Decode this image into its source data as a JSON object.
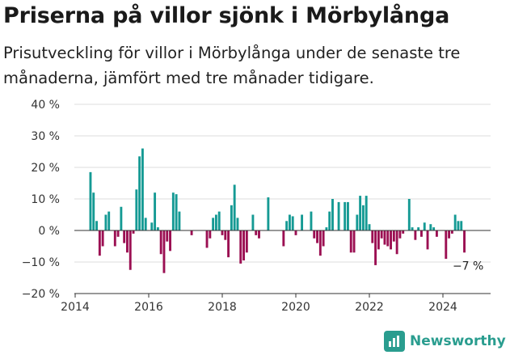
{
  "title": "Priserna på villor sjönk i Mörbylånga",
  "subtitle": "Prisutveckling för villor i Mörbylånga under de senaste tre månaderna, jämfört med tre månader tidigare.",
  "logo": {
    "text": "Newsworthy",
    "icon": "bar-chart-badge-icon"
  },
  "colors": {
    "positive": "#159a94",
    "negative": "#9b0f52",
    "grid": "#dddddd",
    "zero": "#333333"
  },
  "chart_data": {
    "type": "bar",
    "title": "Priserna på villor sjönk i Mörbylånga",
    "xlabel": "",
    "ylabel": "",
    "x_range": [
      "2014-01",
      "2025-04"
    ],
    "x_ticks": [
      "2014",
      "2016",
      "2018",
      "2020",
      "2022",
      "2024"
    ],
    "ylim": [
      -20,
      40
    ],
    "y_ticks": [
      "−20 %",
      "−10 %",
      "0 %",
      "10 %",
      "20 %",
      "30 %",
      "40 %"
    ],
    "grid": true,
    "annotation": {
      "text": "−7 %",
      "x": "2024-09",
      "y": -7
    },
    "series": [
      {
        "points": [
          [
            "2014-06",
            18.5
          ],
          [
            "2014-07",
            12
          ],
          [
            "2014-08",
            3
          ],
          [
            "2014-09",
            -8
          ],
          [
            "2014-10",
            -5
          ],
          [
            "2014-11",
            5
          ],
          [
            "2014-12",
            6
          ],
          [
            "2015-02",
            -5
          ],
          [
            "2015-03",
            -2
          ],
          [
            "2015-04",
            7.5
          ],
          [
            "2015-05",
            -4
          ],
          [
            "2015-06",
            -7
          ],
          [
            "2015-07",
            -12.5
          ],
          [
            "2015-08",
            -1
          ],
          [
            "2015-09",
            13
          ],
          [
            "2015-10",
            23.5
          ],
          [
            "2015-11",
            26
          ],
          [
            "2015-12",
            4
          ],
          [
            "2016-02",
            2.5
          ],
          [
            "2016-03",
            12
          ],
          [
            "2016-04",
            1
          ],
          [
            "2016-05",
            -7.5
          ],
          [
            "2016-06",
            -13.5
          ],
          [
            "2016-07",
            -3.5
          ],
          [
            "2016-08",
            -6.5
          ],
          [
            "2016-09",
            12
          ],
          [
            "2016-10",
            11.5
          ],
          [
            "2016-11",
            6
          ],
          [
            "2017-03",
            -1.5
          ],
          [
            "2017-08",
            -5.5
          ],
          [
            "2017-09",
            -2.5
          ],
          [
            "2017-10",
            4
          ],
          [
            "2017-11",
            5
          ],
          [
            "2017-12",
            6
          ],
          [
            "2018-01",
            -1.5
          ],
          [
            "2018-02",
            -3
          ],
          [
            "2018-03",
            -8.5
          ],
          [
            "2018-04",
            8
          ],
          [
            "2018-05",
            14.5
          ],
          [
            "2018-06",
            4
          ],
          [
            "2018-07",
            -10.5
          ],
          [
            "2018-08",
            -9.5
          ],
          [
            "2018-09",
            -7
          ],
          [
            "2018-11",
            5
          ],
          [
            "2018-12",
            -1.5
          ],
          [
            "2019-01",
            -2.5
          ],
          [
            "2019-04",
            10.5
          ],
          [
            "2019-09",
            -5
          ],
          [
            "2019-10",
            3
          ],
          [
            "2019-11",
            5
          ],
          [
            "2019-12",
            4.5
          ],
          [
            "2020-01",
            -1.5
          ],
          [
            "2020-03",
            5
          ],
          [
            "2020-06",
            6
          ],
          [
            "2020-07",
            -2.5
          ],
          [
            "2020-08",
            -4
          ],
          [
            "2020-09",
            -8
          ],
          [
            "2020-10",
            -5
          ],
          [
            "2020-11",
            1
          ],
          [
            "2020-12",
            6
          ],
          [
            "2021-01",
            10
          ],
          [
            "2021-03",
            9
          ],
          [
            "2021-05",
            9
          ],
          [
            "2021-06",
            9
          ],
          [
            "2021-07",
            -7
          ],
          [
            "2021-08",
            -7
          ],
          [
            "2021-09",
            5
          ],
          [
            "2021-10",
            11
          ],
          [
            "2021-11",
            8
          ],
          [
            "2021-12",
            11
          ],
          [
            "2022-01",
            2
          ],
          [
            "2022-02",
            -4
          ],
          [
            "2022-03",
            -11
          ],
          [
            "2022-04",
            -6
          ],
          [
            "2022-05",
            -2.5
          ],
          [
            "2022-06",
            -4.5
          ],
          [
            "2022-07",
            -5
          ],
          [
            "2022-08",
            -6
          ],
          [
            "2022-09",
            -3.5
          ],
          [
            "2022-10",
            -7.5
          ],
          [
            "2022-11",
            -2.5
          ],
          [
            "2022-12",
            -1
          ],
          [
            "2023-02",
            10
          ],
          [
            "2023-03",
            1
          ],
          [
            "2023-04",
            -3
          ],
          [
            "2023-05",
            1
          ],
          [
            "2023-06",
            -2
          ],
          [
            "2023-07",
            2.5
          ],
          [
            "2023-08",
            -6
          ],
          [
            "2023-09",
            2
          ],
          [
            "2023-10",
            1
          ],
          [
            "2023-11",
            -2
          ],
          [
            "2024-02",
            -9
          ],
          [
            "2024-03",
            -2.5
          ],
          [
            "2024-04",
            -1
          ],
          [
            "2024-05",
            5
          ],
          [
            "2024-06",
            3
          ],
          [
            "2024-07",
            3
          ],
          [
            "2024-08",
            -7
          ]
        ]
      }
    ]
  }
}
